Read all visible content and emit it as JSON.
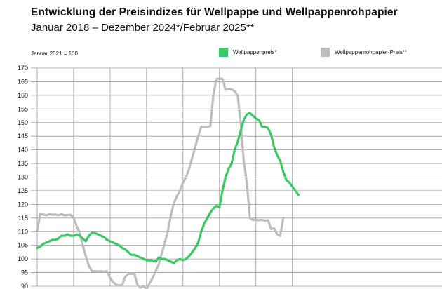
{
  "chart_data": {
    "type": "line",
    "title": "Entwicklung der Preisindizes für Wellpappe und Wellpappenrohpapier",
    "subtitle": "Januar 2018 – Dezember 2024*/Februar 2025**",
    "note": "Januar 2021 = 100",
    "ylim": [
      90,
      170
    ],
    "yticks": [
      90,
      95,
      100,
      105,
      110,
      115,
      120,
      125,
      130,
      135,
      140,
      145,
      150,
      155,
      160,
      165,
      170
    ],
    "xlim": [
      0,
      86
    ],
    "x_gridlines_every": 12,
    "grid": true,
    "legend_position": "top-right",
    "series": [
      {
        "name": "Wellpappenpreis*",
        "color": "#3cc864",
        "points": [
          [
            0,
            104
          ],
          [
            1,
            104.5
          ],
          [
            2,
            105.5
          ],
          [
            3,
            106
          ],
          [
            4,
            106.5
          ],
          [
            5,
            107
          ],
          [
            6,
            107
          ],
          [
            7,
            107.5
          ],
          [
            8,
            108.5
          ],
          [
            9,
            108.5
          ],
          [
            10,
            109
          ],
          [
            11,
            108.5
          ],
          [
            12,
            108.5
          ],
          [
            13,
            109
          ],
          [
            14,
            108.5
          ],
          [
            15,
            107.5
          ],
          [
            16,
            106.5
          ],
          [
            17,
            108.5
          ],
          [
            18,
            109.5
          ],
          [
            19,
            109.5
          ],
          [
            20,
            109
          ],
          [
            21,
            108.5
          ],
          [
            22,
            108
          ],
          [
            23,
            107
          ],
          [
            24,
            106.5
          ],
          [
            25,
            106
          ],
          [
            26,
            105.5
          ],
          [
            27,
            105
          ],
          [
            28,
            104
          ],
          [
            29,
            103.5
          ],
          [
            30,
            102.5
          ],
          [
            31,
            101.5
          ],
          [
            32,
            101.5
          ],
          [
            33,
            101
          ],
          [
            34,
            100.5
          ],
          [
            35,
            100
          ],
          [
            36,
            99.5
          ],
          [
            37,
            99.5
          ],
          [
            38,
            99.5
          ],
          [
            39,
            99
          ],
          [
            40,
            100.5
          ],
          [
            41,
            100
          ],
          [
            42,
            100
          ],
          [
            43,
            99.5
          ],
          [
            44,
            99
          ],
          [
            45,
            98.5
          ],
          [
            46,
            99.5
          ],
          [
            47,
            100
          ],
          [
            48,
            99.5
          ],
          [
            49,
            100
          ],
          [
            50,
            101
          ],
          [
            51,
            102.5
          ],
          [
            52,
            104
          ],
          [
            53,
            106
          ],
          [
            54,
            110
          ],
          [
            55,
            113
          ],
          [
            56,
            115
          ],
          [
            57,
            117
          ],
          [
            58,
            118.5
          ],
          [
            59,
            119.5
          ],
          [
            60,
            119
          ],
          [
            61,
            125
          ],
          [
            62,
            130
          ],
          [
            63,
            133
          ],
          [
            64,
            135
          ],
          [
            65,
            140
          ],
          [
            66,
            143
          ],
          [
            67,
            147
          ],
          [
            68,
            151
          ],
          [
            69,
            153
          ],
          [
            70,
            153.5
          ],
          [
            71,
            152.5
          ],
          [
            72,
            151.5
          ],
          [
            73,
            151
          ],
          [
            74,
            148.5
          ],
          [
            75,
            148.5
          ],
          [
            76,
            148
          ],
          [
            77,
            145.5
          ],
          [
            78,
            141
          ],
          [
            79,
            138
          ],
          [
            80,
            136
          ],
          [
            81,
            132
          ],
          [
            82,
            129
          ],
          [
            83,
            128
          ],
          [
            84,
            126.5
          ],
          [
            85,
            125
          ],
          [
            86,
            123.5
          ]
        ]
      },
      {
        "name": "Wellpappenrohpapier-Preis**",
        "color": "#bdbdbd",
        "points": [
          [
            0,
            110
          ],
          [
            1,
            116.5
          ],
          [
            2,
            116.3
          ],
          [
            3,
            116
          ],
          [
            4,
            116.4
          ],
          [
            5,
            116.2
          ],
          [
            6,
            116.3
          ],
          [
            7,
            116
          ],
          [
            8,
            116.4
          ],
          [
            9,
            116
          ],
          [
            10,
            116.1
          ],
          [
            11,
            116.2
          ],
          [
            12,
            115
          ],
          [
            13,
            112
          ],
          [
            14,
            109.5
          ],
          [
            15,
            105
          ],
          [
            16,
            101
          ],
          [
            17,
            97.5
          ],
          [
            18,
            95.5
          ],
          [
            19,
            95.5
          ],
          [
            20,
            95.4
          ],
          [
            21,
            95.5
          ],
          [
            22,
            95.3
          ],
          [
            23,
            95.5
          ],
          [
            24,
            93
          ],
          [
            25,
            91.5
          ],
          [
            26,
            90.5
          ],
          [
            27,
            90.3
          ],
          [
            28,
            90.5
          ],
          [
            29,
            93.5
          ],
          [
            30,
            94.5
          ],
          [
            31,
            94.6
          ],
          [
            32,
            94.5
          ],
          [
            33,
            90.5
          ],
          [
            34,
            89.5
          ],
          [
            35,
            90
          ],
          [
            36,
            89
          ],
          [
            37,
            91
          ],
          [
            38,
            93
          ],
          [
            39,
            95.5
          ],
          [
            40,
            98
          ],
          [
            41,
            102
          ],
          [
            42,
            106
          ],
          [
            43,
            110
          ],
          [
            44,
            116
          ],
          [
            45,
            120.5
          ],
          [
            46,
            123
          ],
          [
            47,
            125
          ],
          [
            48,
            128
          ],
          [
            49,
            130
          ],
          [
            50,
            133
          ],
          [
            51,
            137
          ],
          [
            52,
            141
          ],
          [
            53,
            145
          ],
          [
            54,
            148.5
          ],
          [
            55,
            148.6
          ],
          [
            56,
            148.5
          ],
          [
            57,
            148.7
          ],
          [
            58,
            160
          ],
          [
            59,
            166
          ],
          [
            60,
            166.2
          ],
          [
            61,
            166
          ],
          [
            62,
            162
          ],
          [
            63,
            162.3
          ],
          [
            64,
            162.2
          ],
          [
            65,
            161.5
          ],
          [
            66,
            160
          ],
          [
            67,
            150
          ],
          [
            68,
            136
          ],
          [
            69,
            128
          ],
          [
            70,
            115
          ],
          [
            71,
            114.3
          ],
          [
            72,
            114.3
          ],
          [
            73,
            114.2
          ],
          [
            74,
            114.3
          ],
          [
            75,
            114
          ],
          [
            76,
            114.2
          ],
          [
            77,
            111
          ],
          [
            78,
            111.2
          ],
          [
            79,
            109
          ],
          [
            80,
            108.5
          ],
          [
            81,
            115
          ]
        ]
      }
    ]
  }
}
